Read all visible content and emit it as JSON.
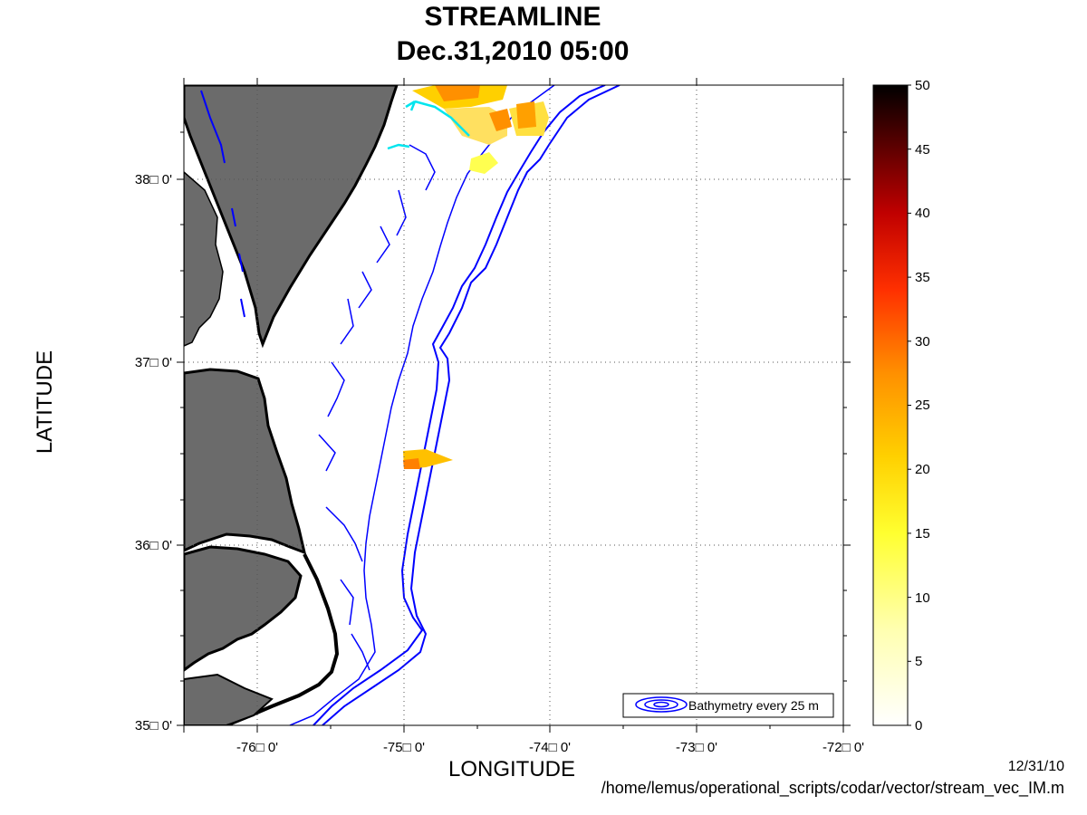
{
  "title": "STREAMLINE",
  "subtitle": "Dec.31,2010 05:00",
  "x_axis": {
    "label": "LONGITUDE",
    "ticks": [
      "-76□ 0'",
      "-75□ 0'",
      "-74□ 0'",
      "-73□ 0'",
      "-72□ 0'"
    ],
    "range": [
      -76.5,
      -72.0
    ]
  },
  "y_axis": {
    "label": "LATITUDE",
    "ticks": [
      "35□ 0'",
      "36□ 0'",
      "37□ 0'",
      "38□ 0'"
    ],
    "range": [
      35.0,
      38.5
    ]
  },
  "colorbar": {
    "ticks": [
      "50",
      "45",
      "40",
      "35",
      "30",
      "25",
      "20",
      "15",
      "10",
      "5",
      "0"
    ],
    "range": [
      0,
      50
    ],
    "colormap": "hot (reversed)"
  },
  "legend": {
    "text": "Bathymetry every 25 m"
  },
  "footer": {
    "date": "12/31/10",
    "path": "/home/lemus/operational_scripts/codar/vector/stream_vec_IM.m"
  },
  "colors": {
    "land": "#6b6b6b",
    "coastline": "#000000",
    "bathymetry": "#0000ff",
    "streamline": "#00e5ee",
    "grid": "#555555"
  }
}
